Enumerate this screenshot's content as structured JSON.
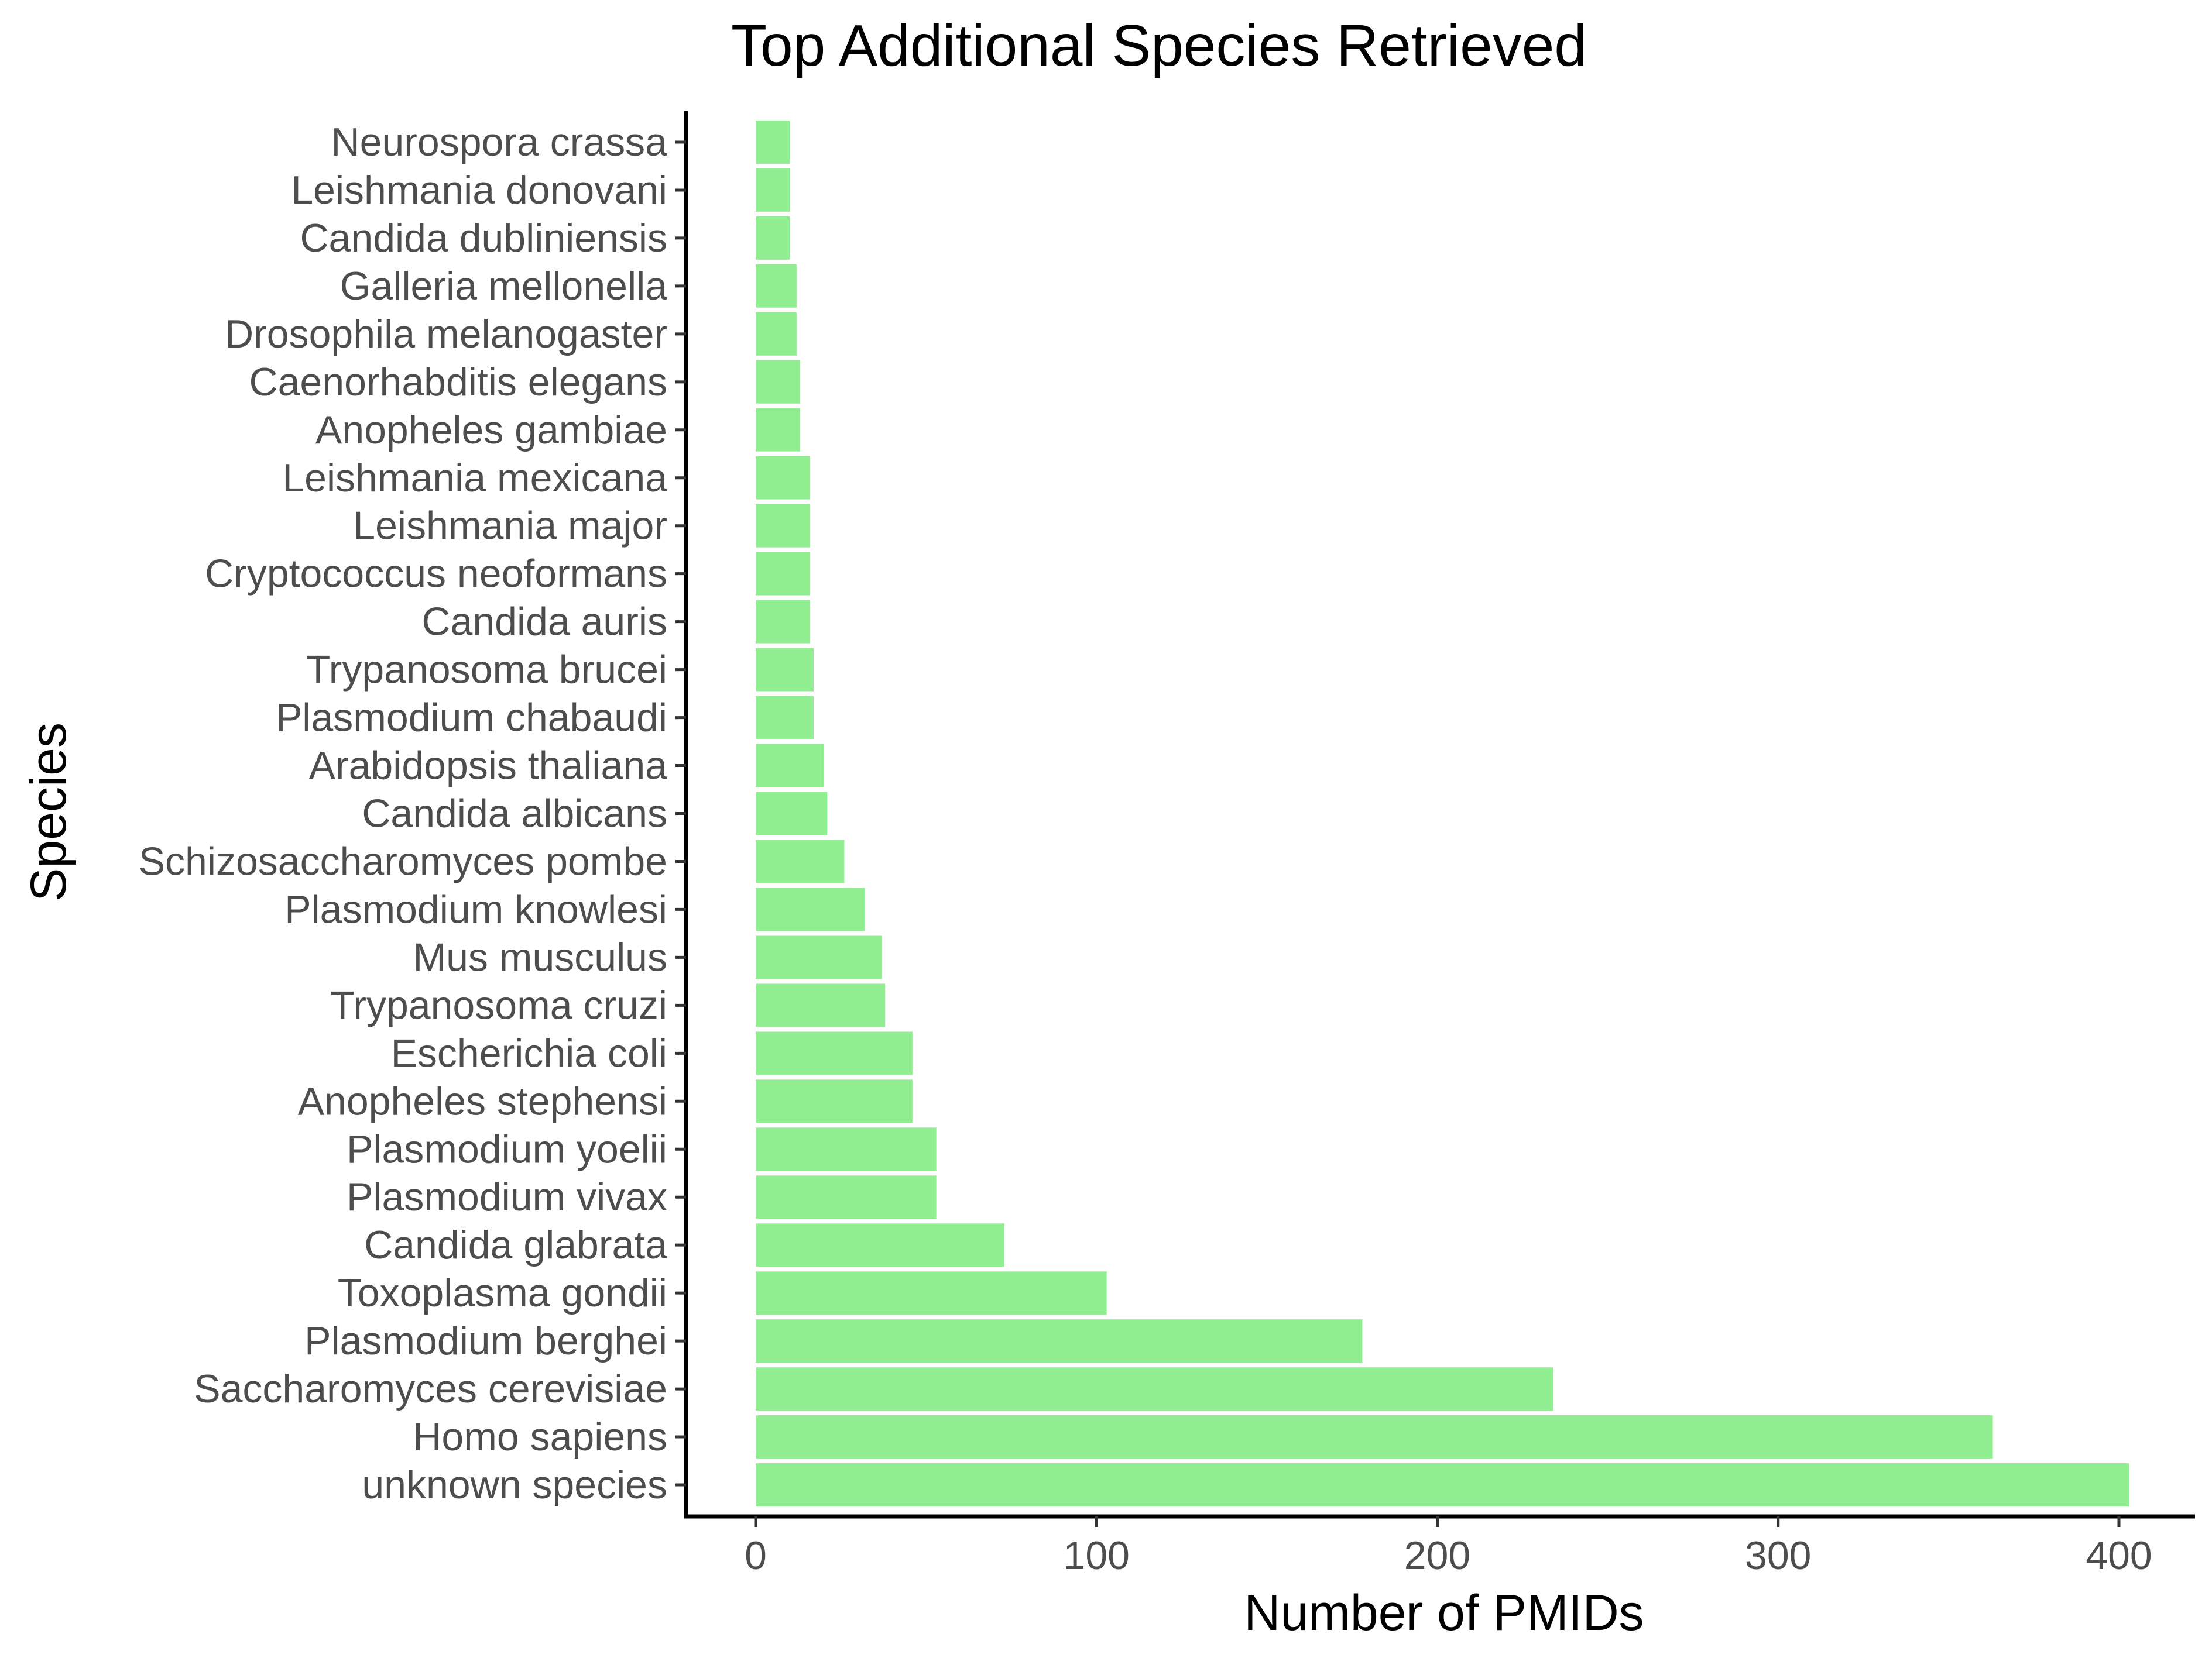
{
  "chart_data": {
    "type": "bar",
    "orientation": "horizontal",
    "title": "Top Additional Species Retrieved",
    "xlabel": "Number of PMIDs",
    "ylabel": "Species",
    "xlim": [
      -20,
      420
    ],
    "xticks": [
      0,
      100,
      200,
      300,
      400
    ],
    "grid": false,
    "legend": "none",
    "bar_color": "#90EE90",
    "categories": [
      "unknown species",
      "Homo sapiens",
      "Saccharomyces cerevisiae",
      "Plasmodium berghei",
      "Toxoplasma gondii",
      "Candida glabrata",
      "Plasmodium vivax",
      "Plasmodium yoelii",
      "Anopheles stephensi",
      "Escherichia coli",
      "Trypanosoma cruzi",
      "Mus musculus",
      "Plasmodium knowlesi",
      "Schizosaccharomyces pombe",
      "Candida albicans",
      "Arabidopsis thaliana",
      "Plasmodium chabaudi",
      "Trypanosoma brucei",
      "Candida auris",
      "Cryptococcus neoformans",
      "Leishmania major",
      "Leishmania mexicana",
      "Anopheles gambiae",
      "Caenorhabditis elegans",
      "Drosophila melanogaster",
      "Galleria mellonella",
      "Candida dubliniensis",
      "Leishmania donovani",
      "Neurospora crassa"
    ],
    "values": [
      403,
      363,
      234,
      178,
      103,
      73,
      53,
      53,
      46,
      46,
      38,
      37,
      32,
      26,
      21,
      20,
      17,
      17,
      16,
      16,
      16,
      16,
      13,
      13,
      12,
      12,
      10,
      10,
      10
    ]
  }
}
